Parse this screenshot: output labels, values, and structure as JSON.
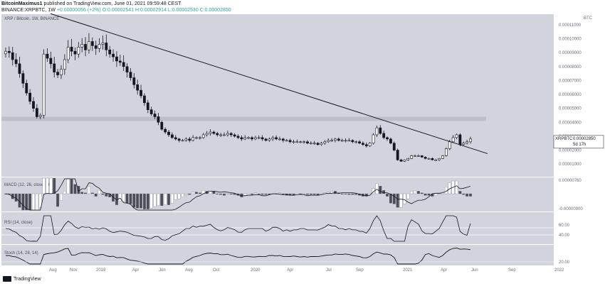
{
  "header": {
    "line1_author": "BitcoinMaximus1",
    "line1_rest": " published on TradingView.com, June 01, 2021 09:59:48 CEST",
    "symbol_line": "BINANCE:XRPBTC, 1W",
    "price_change": "+0.00000056 (+2%)",
    "ohlc": "O:0.00002541 H:0.00002914 L:0.00002530 C:0.00002850"
  },
  "footer": {
    "brand": "TradingView"
  },
  "colors": {
    "panel": "#d1d4dc",
    "divider": "#ffffff",
    "candle_up": "#ffffff",
    "candle_down": "#131722",
    "trendline": "#131722",
    "hline": "#b8bbc4",
    "macd_line": "#131722",
    "hist_light": "#ffffff",
    "hist_dark": "#4a4d57"
  },
  "panels": [
    {
      "key": "price",
      "label": "XRP / Bitcoin, 1W, BINANCE",
      "currency": "BTC"
    },
    {
      "key": "macd",
      "label": "MACD (12, 26, close, 26)"
    },
    {
      "key": "rsi",
      "label": "RSI (14, close)"
    },
    {
      "key": "stoch",
      "label": "Stoch (14, 28, 14)"
    }
  ],
  "price_axis_ticks": [
    "0.00011000",
    "0.00010000",
    "0.00009000",
    "0.00008000",
    "0.00007000",
    "0.00006000",
    "0.00005000",
    "0.00004000",
    "0.00003000",
    "0.00002000",
    "0.00001000"
  ],
  "price_badge": {
    "symbol": "XRPBTC",
    "value": "0.00002850",
    "countdown": "5d 17h"
  },
  "macd_axis_ticks": [
    "0.00000760",
    "-0.00000900"
  ],
  "rsi_axis_ticks": [
    "60.00",
    "40.00"
  ],
  "stoch_axis_ticks": [
    "20.00"
  ],
  "time_axis": [
    "Aug",
    "Nov",
    "2019",
    "Apr",
    "Jun",
    "Aug",
    "Oct",
    "2020",
    "Apr",
    "Jul",
    "Sep",
    "2021",
    "Apr",
    "Jun",
    "Sep",
    "2022"
  ],
  "chart_data": {
    "type": "candlestick",
    "interval": "1W",
    "ylim": [
      5.5e-06,
      0.0001115
    ],
    "horizontal_resistance": 4.25e-05,
    "trendline": [
      {
        "x": 71,
        "y": 0.000118
      },
      {
        "x": 685,
        "y": 1.75e-05
      }
    ],
    "closes": [
      9.1e-05,
      9e-05,
      8.5e-05,
      8.2e-05,
      7.5e-05,
      6.8e-05,
      6.1e-05,
      5.5e-05,
      5e-05,
      4.4e-05,
      4.5e-05,
      8.9e-05,
      8.6e-05,
      8.2e-05,
      7.6e-05,
      7.4e-05,
      7.8e-05,
      8.5e-05,
      9.4e-05,
      9.1e-05,
      8.9e-05,
      9.4e-05,
      9.6e-05,
      9.2e-05,
      9.8e-05,
      9.5e-05,
      9.3e-05,
      9.6e-05,
      9.7e-05,
      9.2e-05,
      8.9e-05,
      8.7e-05,
      8.4e-05,
      8.3e-05,
      8e-05,
      7.6e-05,
      7.2e-05,
      6.7e-05,
      6.3e-05,
      5.9e-05,
      5.4e-05,
      4.9e-05,
      4.6e-05,
      4.4e-05,
      4e-05,
      3.5e-05,
      3.3e-05,
      3.1e-05,
      2.9e-05,
      2.8e-05,
      2.7e-05,
      2.7e-05,
      2.8e-05,
      2.7e-05,
      2.9e-05,
      2.9e-05,
      2.9e-05,
      3.1e-05,
      3.2e-05,
      3.3e-05,
      3.2e-05,
      3.1e-05,
      3.1e-05,
      3.1e-05,
      3.2e-05,
      3.1e-05,
      3e-05,
      2.9e-05,
      2.8e-05,
      2.9e-05,
      2.9e-05,
      2.8e-05,
      2.9e-05,
      2.9e-05,
      2.8e-05,
      2.7e-05,
      2.8e-05,
      2.9e-05,
      2.8e-05,
      2.8e-05,
      2.7e-05,
      2.7e-05,
      2.6e-05,
      2.6e-05,
      2.6e-05,
      2.6e-05,
      2.6e-05,
      2.5e-05,
      2.5e-05,
      2.5e-05,
      2.4e-05,
      2.5e-05,
      2.6e-05,
      2.7e-05,
      2.7e-05,
      2.8e-05,
      2.7e-05,
      2.7e-05,
      2.7e-05,
      2.7e-05,
      2.6e-05,
      2.6e-05,
      2.5e-05,
      2.4e-05,
      2.3e-05,
      2.5e-05,
      3.1e-05,
      3.6e-05,
      3.2e-05,
      2.9e-05,
      2.8e-05,
      2.5e-05,
      2e-05,
      1.3e-05,
      1.2e-05,
      1.3e-05,
      1.4e-05,
      1.6e-05,
      1.6e-05,
      1.6e-05,
      1.5e-05,
      1.4e-05,
      1.4e-05,
      1.3e-05,
      1.3e-05,
      1.4e-05,
      1.6e-05,
      2.1e-05,
      2.6e-05,
      2.9e-05,
      3.1e-05,
      2.4e-05,
      2.5e-05,
      2.6e-05,
      2.8e-05
    ]
  }
}
